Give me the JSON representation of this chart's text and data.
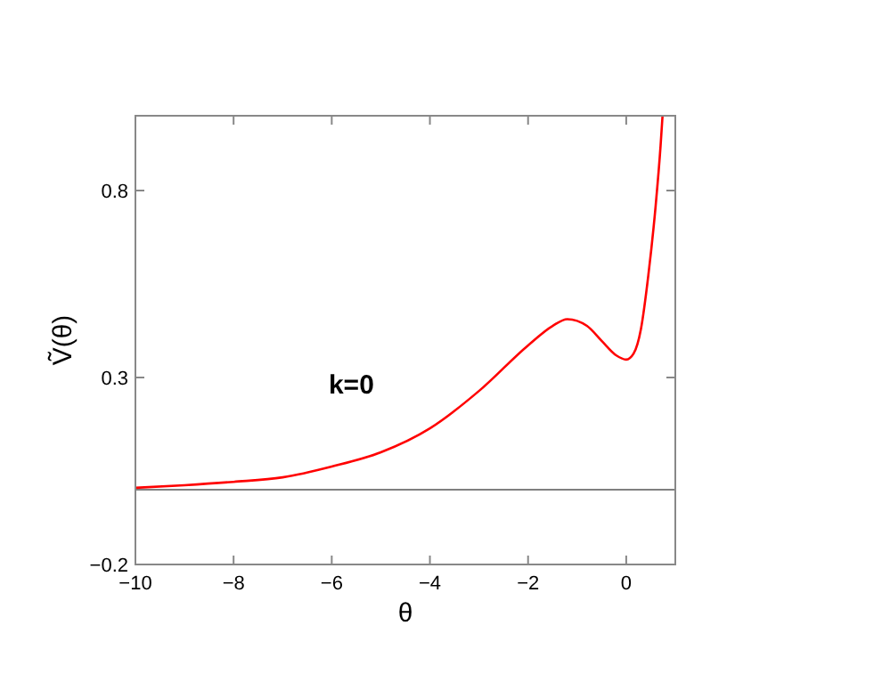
{
  "chart_data": {
    "type": "line",
    "xlabel": "θ",
    "ylabel": "Ṽ(θ)",
    "xlim": [
      -10,
      1
    ],
    "xticks": [
      -10,
      -8,
      -6,
      -4,
      -2,
      0
    ],
    "ylim": [
      -0.2,
      1
    ],
    "yticks": [
      -0.2,
      0.3,
      0.8
    ],
    "x": [
      -10,
      -9,
      -8,
      -7,
      -6,
      -5,
      -4,
      -3,
      -2,
      -1.5,
      -1.2,
      -0.8,
      -0.5,
      -0.2,
      0,
      0.15,
      0.3,
      0.45,
      0.6,
      0.7,
      0.74
    ],
    "series": [
      {
        "color": "#ff0000",
        "values": [
          0.005,
          0.012,
          0.021,
          0.033,
          0.062,
          0.1,
          0.164,
          0.264,
          0.386,
          0.438,
          0.456,
          0.438,
          0.398,
          0.359,
          0.348,
          0.364,
          0.43,
          0.573,
          0.76,
          0.92,
          1.0
        ]
      }
    ],
    "ref_lines": [
      {
        "axis": "y",
        "value": 0,
        "color": "#808080"
      }
    ],
    "annotations": [
      "k=0"
    ],
    "grid": false,
    "marker": "none",
    "line_style": "solid"
  }
}
